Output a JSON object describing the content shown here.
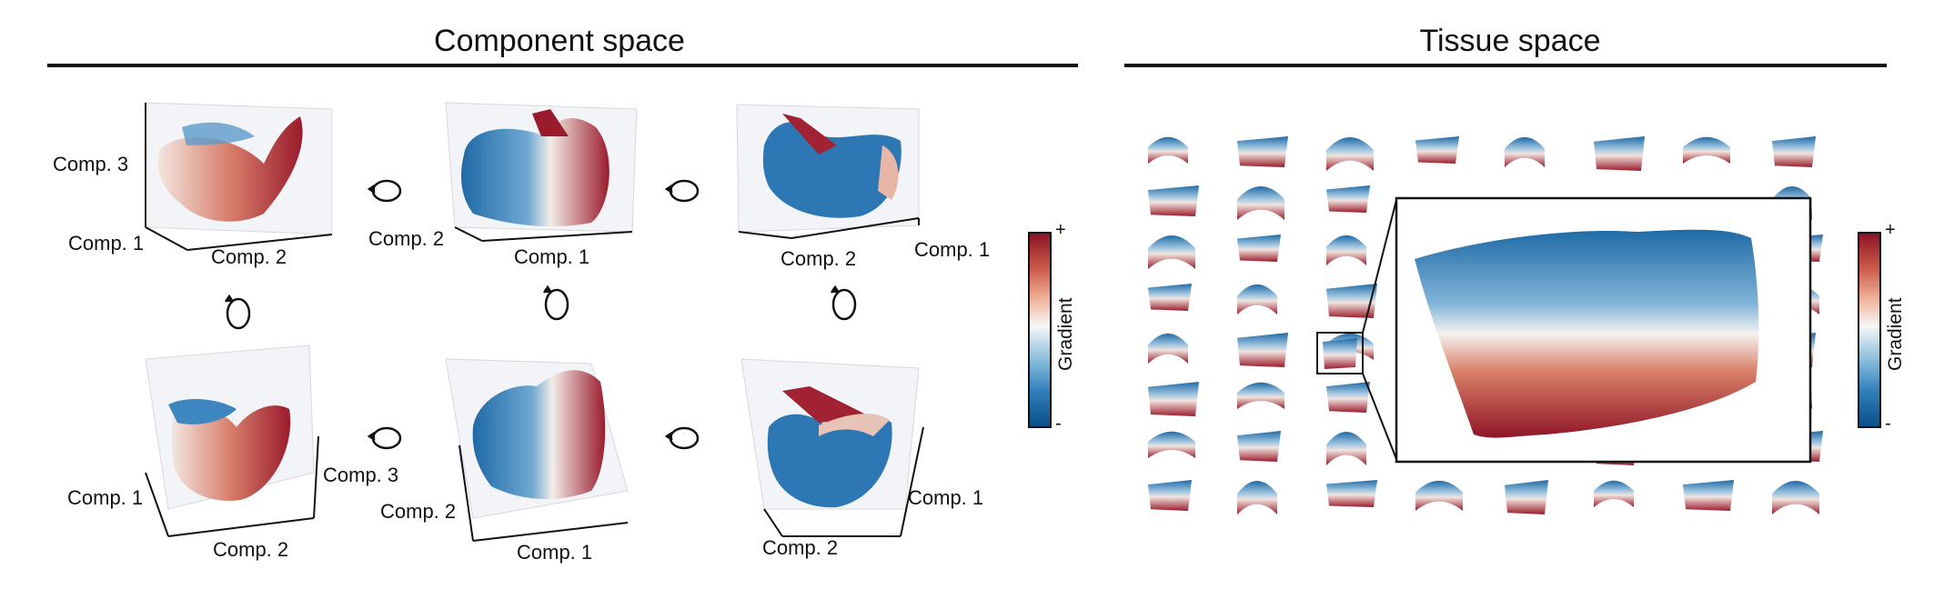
{
  "component_space": {
    "title": "Component space",
    "panels": [
      {
        "axes": [
          "Comp. 3",
          "Comp. 1",
          "Comp. 2"
        ]
      },
      {
        "axes": [
          "Comp. 2",
          "Comp. 1"
        ]
      },
      {
        "axes": [
          "Comp. 2",
          "Comp. 1"
        ]
      },
      {
        "axes": [
          "Comp. 1",
          "Comp. 2",
          "Comp. 3"
        ]
      },
      {
        "axes": [
          "Comp. 2",
          "Comp. 1"
        ]
      },
      {
        "axes": [
          "Comp. 2",
          "Comp. 1"
        ]
      }
    ],
    "colorbar": {
      "label": "Gradient",
      "max": "+",
      "min": "-"
    }
  },
  "tissue_space": {
    "title": "Tissue space",
    "colorbar": {
      "label": "Gradient",
      "max": "+",
      "min": "-"
    }
  },
  "colors": {
    "blue": "#1f6aa6",
    "white": "#f4f4f4",
    "red": "#9a1b2c"
  },
  "icons": [
    "rotate-icon"
  ]
}
